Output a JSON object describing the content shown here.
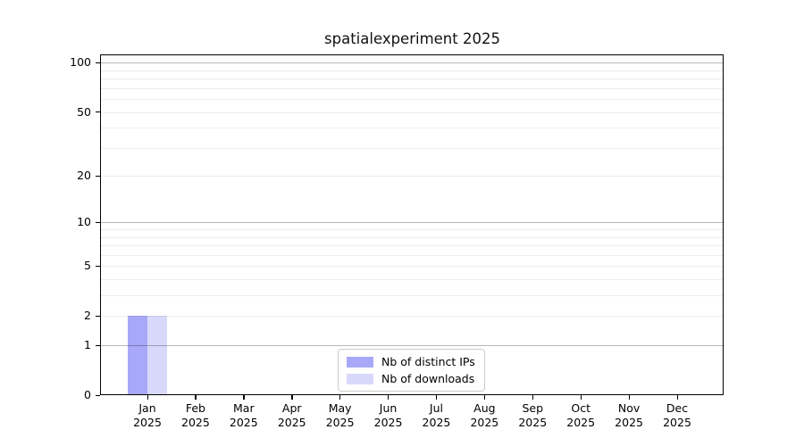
{
  "chart_data": {
    "type": "bar",
    "title": "spatialexperiment 2025",
    "categories": [
      "Jan",
      "Feb",
      "Mar",
      "Apr",
      "May",
      "Jun",
      "Jul",
      "Aug",
      "Sep",
      "Oct",
      "Nov",
      "Dec"
    ],
    "category_year": "2025",
    "series": [
      {
        "name": "Nb of distinct IPs",
        "color": "#a8a8f8",
        "values": [
          2,
          0,
          0,
          0,
          0,
          0,
          0,
          0,
          0,
          0,
          0,
          0
        ]
      },
      {
        "name": "Nb of downloads",
        "color": "#d8d8fa",
        "values": [
          2,
          0,
          0,
          0,
          0,
          0,
          0,
          0,
          0,
          0,
          0,
          0
        ]
      }
    ],
    "xlabel": "",
    "ylabel": "",
    "y_scale": "log1p",
    "ylim": [
      0,
      111
    ],
    "y_ticks": [
      0,
      1,
      2,
      5,
      10,
      20,
      50,
      100
    ],
    "major_gridlines": [
      1,
      10,
      100
    ],
    "minor_gridlines": [
      2,
      3,
      4,
      5,
      6,
      7,
      8,
      9,
      20,
      30,
      40,
      50,
      60,
      70,
      80,
      90
    ],
    "grid": true,
    "legend_position": "lower center",
    "colors": {
      "spine": "#000000",
      "major_grid": "#b5b5b5",
      "minor_grid": "#ececec",
      "legend_border": "#cccccc",
      "background": "#ffffff"
    }
  }
}
